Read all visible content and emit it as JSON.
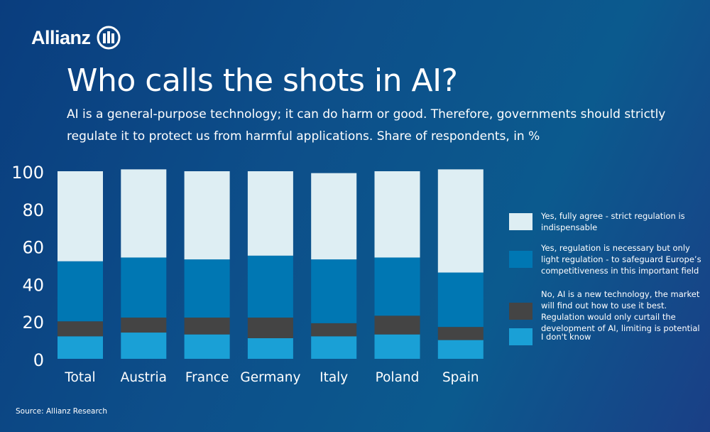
{
  "brand": {
    "name": "Allianz"
  },
  "header": {
    "title": "Who calls the shots in AI?",
    "subtitle": "AI is a general-purpose technology; it can do harm or good. Therefore, governments should strictly regulate it to protect us from harmful applications. Share of respondents, in %"
  },
  "chart_data": {
    "type": "bar",
    "stacked": true,
    "categories": [
      "Total",
      "Austria",
      "France",
      "Germany",
      "Italy",
      "Poland",
      "Spain"
    ],
    "ylim": [
      0,
      100
    ],
    "yticks": [
      "0",
      "20",
      "40",
      "60",
      "80",
      "100"
    ],
    "grid": false,
    "legend_position": "right",
    "series": [
      {
        "name": "I don't know",
        "color": "#1aa0d6",
        "values": [
          12,
          14,
          13,
          11,
          12,
          13,
          10
        ]
      },
      {
        "name": "No, AI is a new technology, the market will find out how to use it best. Regulation would only curtail the development of AI, limiting is potential",
        "color": "#444444",
        "values": [
          8,
          8,
          9,
          11,
          7,
          10,
          7
        ]
      },
      {
        "name": "Yes, regulation is necessary but only light regulation - to safeguard Europe’s competitiveness in this important field",
        "color": "#0077b3",
        "values": [
          32,
          32,
          31,
          33,
          34,
          31,
          29
        ]
      },
      {
        "name": "Yes, fully agree - strict regulation is indispensable",
        "color": "#deeef3",
        "values": [
          48,
          47,
          47,
          45,
          46,
          46,
          55
        ]
      }
    ]
  },
  "legend_order": [
    3,
    2,
    1,
    0
  ],
  "footer": {
    "source": "Source: Allianz Research"
  }
}
